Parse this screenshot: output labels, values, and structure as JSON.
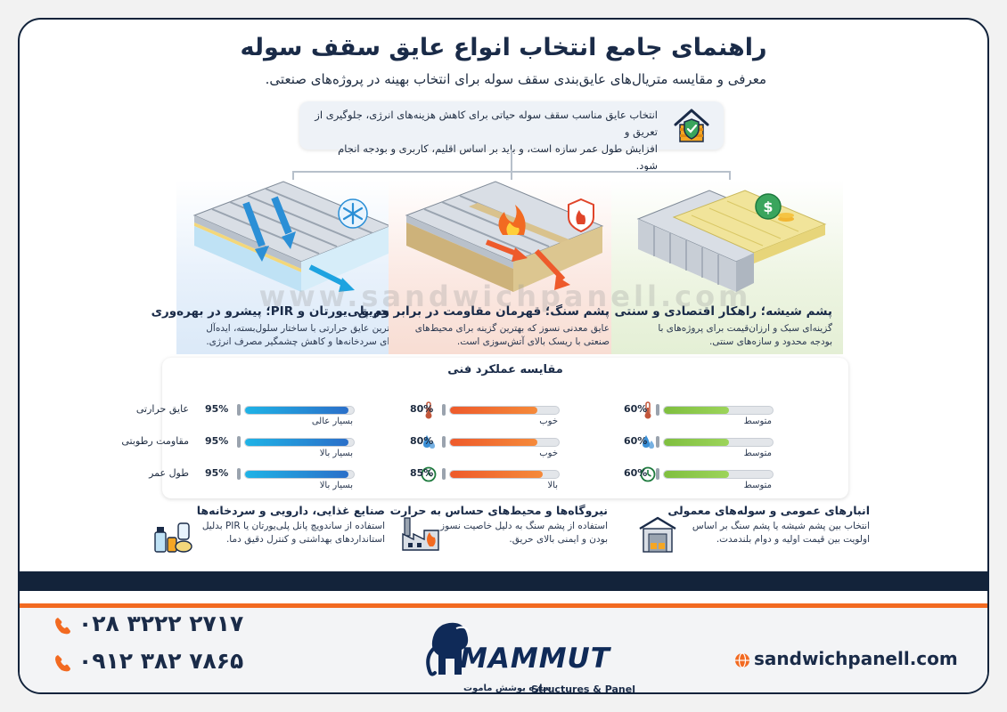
{
  "header": {
    "title": "راهنمای جامع انتخاب انواع عایق سقف سوله",
    "subtitle": "معرفی و مقایسه متریال‌های عایق‌بندی سقف سوله برای انتخاب بهینه در پروژه‌های صنعتی.",
    "intro_line1": "انتخاب عایق مناسب سقف سوله حیاتی برای کاهش هزینه‌های انرژی، جلوگیری از تعریق و",
    "intro_line2": "افزایش طول عمر سازه است، و باید بر اساس اقلیم، کاربری و بودجه انجام شود."
  },
  "materials": {
    "pu": {
      "title": "فوم پلی‌یورتان و PIR؛ پیشرو در بهره‌وری",
      "desc_line1": "برترین عایق حرارتی با ساختار سلول‌بسته، ایده‌آل",
      "desc_line2": "برای سردخانه‌ها و کاهش چشمگیر مصرف انرژی."
    },
    "rockwool": {
      "title": "پشم سنگ؛ قهرمان مقاومت در برابر حریق",
      "desc_line1": "عایق معدنی نسوز که بهترین گزینه برای محیط‌های",
      "desc_line2": "صنعتی با ریسک بالای آتش‌سوزی است."
    },
    "glasswool": {
      "title": "پشم شیشه؛ راهکار اقتصادی و سنتی",
      "desc_line1": "گزینه‌ای سبک و ارزان‌قیمت برای پروژه‌های با",
      "desc_line2": "بودجه محدود و سازه‌های سنتی."
    }
  },
  "watermark": "www.sandwichpanell.com",
  "comparison": {
    "title": "مقایسه عملکرد فنی",
    "labels": {
      "thermal": "عایق حرارتی",
      "moisture": "مقاومت رطوبتی",
      "lifespan": "طول عمر"
    },
    "pu": {
      "thermal": {
        "value": 0.95,
        "pct": "95%",
        "rating": "بسیار عالی"
      },
      "moisture": {
        "value": 0.95,
        "pct": "95%",
        "rating": "بسیار بالا"
      },
      "lifespan": {
        "value": 0.95,
        "pct": "95%",
        "rating": "بسیار بالا"
      }
    },
    "rockwool": {
      "thermal": {
        "value": 0.8,
        "pct": "80%",
        "rating": "خوب"
      },
      "moisture": {
        "value": 0.8,
        "pct": "80%",
        "rating": "خوب"
      },
      "lifespan": {
        "value": 0.85,
        "pct": "85%",
        "rating": "بالا"
      }
    },
    "glasswool": {
      "thermal": {
        "value": 0.6,
        "pct": "60%",
        "rating": "متوسط"
      },
      "moisture": {
        "value": 0.6,
        "pct": "60%",
        "rating": "متوسط"
      },
      "lifespan": {
        "value": 0.6,
        "pct": "60%",
        "rating": "متوسط"
      }
    },
    "colors": {
      "blue": "#1fa0d8",
      "red": "#ee5a2b",
      "green": "#86c443"
    }
  },
  "applications": {
    "food": {
      "title": "صنایع غذایی، دارویی و سردخانه‌ها",
      "desc_line1": "استفاده از ساندویچ پانل پلی‌یورتان یا PIR بدلیل",
      "desc_line2": "استانداردهای بهداشتی و کنترل دقیق دما."
    },
    "power": {
      "title": "نیروگاه‌ها و محیط‌های حساس به حرارت",
      "desc_line1": "استفاده از پشم سنگ به دلیل خاصیت نسوز",
      "desc_line2": "بودن و ایمنی بالای حریق."
    },
    "warehouse": {
      "title": "انبارهای عمومی و سوله‌های معمولی",
      "desc_line1": "انتخاب بین پشم شیشه یا پشم سنگ بر اساس",
      "desc_line2": "اولویت بین قیمت اولیه و دوام بلندمدت."
    }
  },
  "footer": {
    "phone1": "۰۲۸ ۳۲۲۲ ۲۷۱۷",
    "phone2": "۰۹۱۲ ۳۸۲ ۷۸۶۵",
    "website": "sandwichpanell.com",
    "brand": "MAMMUT",
    "brand_sub_en": "Structures & Panel",
    "brand_sub_fa": "سازه پوشش ماموت"
  }
}
